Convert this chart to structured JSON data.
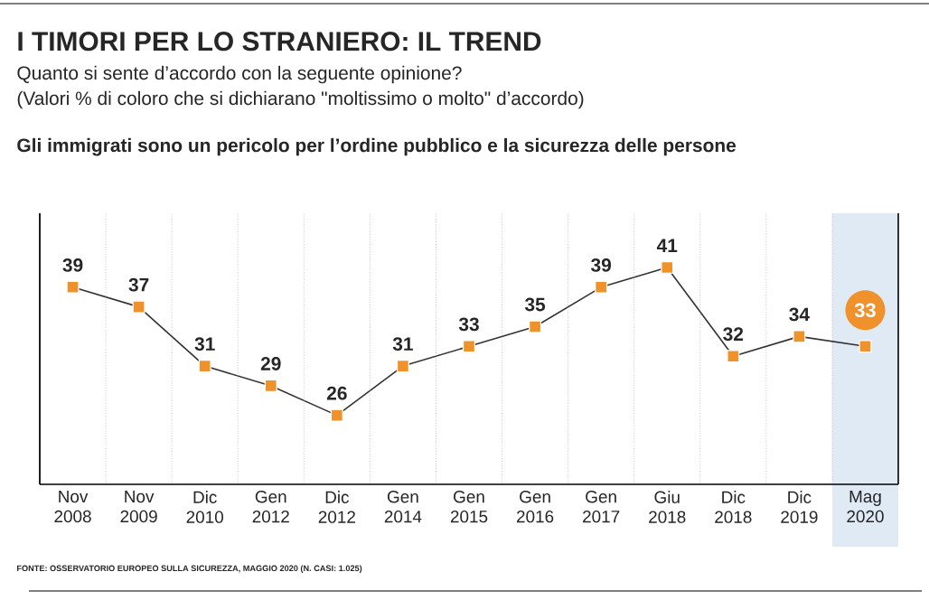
{
  "chart_data": {
    "type": "line",
    "title": "I TIMORI PER LO STRANIERO: IL TREND",
    "subtitle": "Quanto si sente d’accordo con la seguente opinione?",
    "annotations": [
      "(Valori % di coloro che si dichiarano \"moltissimo o molto\" d’accordo)",
      "Gli immigrati sono un pericolo per l’ordine pubblico e la sicurezza delle persone",
      "FONTE: OSSERVATORIO EUROPEO SULLA SICUREZZA, MAGGIO 2020 (N. CASI: 1.025)"
    ],
    "categories": [
      "Nov 2008",
      "Nov 2009",
      "Dic 2010",
      "Gen 2012",
      "Dic 2012",
      "Gen 2014",
      "Gen 2015",
      "Gen 2016",
      "Gen 2017",
      "Giu 2018",
      "Dic 2018",
      "Dic 2019",
      "Mag 2020"
    ],
    "series": [
      {
        "color": "#f0922b",
        "values": [
          39,
          37,
          31,
          29,
          26,
          31,
          33,
          35,
          39,
          41,
          32,
          34,
          33
        ]
      }
    ],
    "data_labels": true,
    "marker": "square",
    "line_style": "solid",
    "grid": "x",
    "bands": [
      {
        "axis": "x",
        "from": "Mag 2020",
        "to": "Mag 2020",
        "color": "#dfeaf5"
      }
    ]
  }
}
